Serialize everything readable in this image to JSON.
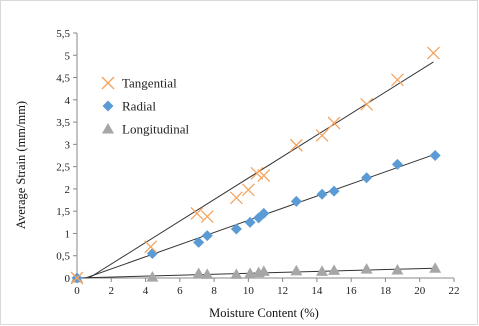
{
  "chart_data": {
    "type": "scatter",
    "title": "",
    "xlabel": "Moisture Content (%)",
    "ylabel": "Average Strain (mm/mm)",
    "xlim": [
      0,
      22
    ],
    "ylim": [
      0,
      5.5
    ],
    "xticks": [
      0,
      2,
      4,
      6,
      8,
      10,
      12,
      14,
      16,
      18,
      20,
      22
    ],
    "xtick_labels": [
      "0",
      "2",
      "4",
      "6",
      "8",
      "10",
      "12",
      "14",
      "16",
      "18",
      "20",
      "22"
    ],
    "yticks": [
      0,
      0.5,
      1,
      1.5,
      2,
      2.5,
      3,
      3.5,
      4,
      4.5,
      5,
      5.5
    ],
    "ytick_labels": [
      "0",
      "0,5",
      "1",
      "1,5",
      "2",
      "2,5",
      "3",
      "3,5",
      "4",
      "4,5",
      "5",
      "5,5"
    ],
    "grid": false,
    "legend_position": "top-left",
    "series": [
      {
        "name": "Tangential",
        "marker": "x",
        "color": "#F4A460",
        "x": [
          0,
          4.3,
          7.0,
          7.6,
          9.3,
          10.0,
          10.5,
          10.9,
          12.8,
          14.3,
          15.0,
          16.9,
          18.7,
          20.8
        ],
        "y": [
          0,
          0.7,
          1.45,
          1.38,
          1.8,
          1.98,
          2.35,
          2.3,
          2.98,
          3.2,
          3.48,
          3.9,
          4.45,
          5.05
        ],
        "trend": [
          [
            0.7,
            0
          ],
          [
            20.8,
            4.85
          ]
        ]
      },
      {
        "name": "Radial",
        "marker": "diamond",
        "color": "#5B9BD5",
        "x": [
          0,
          4.4,
          7.1,
          7.6,
          9.3,
          10.1,
          10.6,
          10.9,
          12.8,
          14.3,
          15.0,
          16.9,
          18.7,
          20.9
        ],
        "y": [
          0,
          0.55,
          0.8,
          0.95,
          1.1,
          1.25,
          1.35,
          1.45,
          1.72,
          1.88,
          1.95,
          2.25,
          2.55,
          2.75
        ],
        "trend": [
          [
            0.5,
            0
          ],
          [
            20.9,
            2.78
          ]
        ]
      },
      {
        "name": "Longitudinal",
        "marker": "triangle",
        "color": "#A6A6A6",
        "x": [
          0,
          4.4,
          7.1,
          7.6,
          9.3,
          10.1,
          10.6,
          10.9,
          12.8,
          14.3,
          15.0,
          16.9,
          18.7,
          20.9
        ],
        "y": [
          0,
          0.02,
          0.1,
          0.08,
          0.08,
          0.1,
          0.12,
          0.15,
          0.16,
          0.15,
          0.17,
          0.2,
          0.18,
          0.22
        ],
        "trend": [
          [
            0,
            0
          ],
          [
            20.9,
            0.22
          ]
        ]
      }
    ]
  }
}
